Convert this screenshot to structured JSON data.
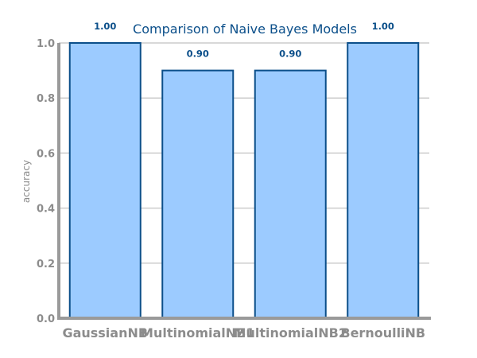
{
  "chart_data": {
    "type": "bar",
    "title": "Comparison of Naive Bayes Models",
    "categories": [
      "GaussianNB",
      "MultinomialNB1",
      "MultinomialNB2",
      "BernoulliNB"
    ],
    "values": [
      1.0,
      0.9,
      0.9,
      1.0
    ],
    "data_labels": [
      "1.00",
      "0.90",
      "0.90",
      "1.00"
    ],
    "xlabel": "",
    "ylabel": "accuracy",
    "ylim": [
      0,
      1.0
    ],
    "yticks": [
      "0.0",
      "0.2",
      "0.4",
      "0.6",
      "0.8",
      "1.0"
    ],
    "grid": "horizontal",
    "colors": {
      "bar_fill": "#9ccbff",
      "bar_edge": "#0b4f8a",
      "title": "#0b4f8a",
      "data_label": "#0b4f8a",
      "tick_label": "#8c8c8c",
      "axis": "#9a9a9a",
      "grid": "#cccccc"
    }
  }
}
